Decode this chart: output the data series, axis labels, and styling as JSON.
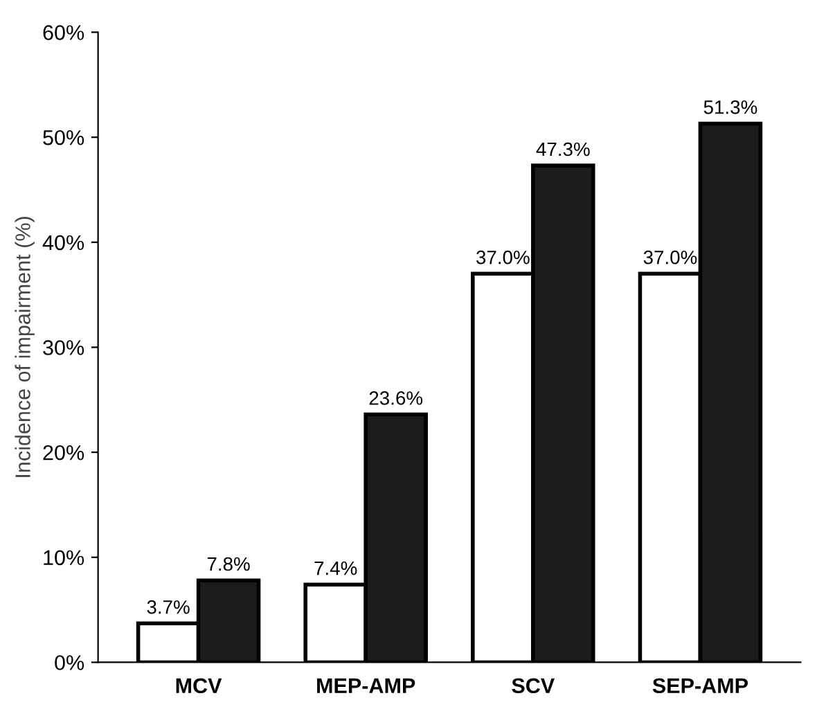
{
  "chart_data": {
    "type": "bar",
    "ylabel": "Incidence of impairment (%)",
    "categories": [
      "MCV",
      "MEP-AMP",
      "SCV",
      "SEP-AMP"
    ],
    "series": [
      {
        "color": "#ffffff",
        "values": [
          3.7,
          7.4,
          37.0,
          37.0
        ],
        "value_labels": [
          "3.7%",
          "7.4%",
          "37.0%",
          "37.0%"
        ]
      },
      {
        "color": "#1c1c1c",
        "values": [
          7.8,
          23.6,
          47.3,
          51.3
        ],
        "value_labels": [
          "7.8%",
          "23.6%",
          "47.3%",
          "51.3%"
        ]
      }
    ],
    "ylim": [
      0,
      60
    ],
    "yticks": [
      {
        "value": 0,
        "label": "0%"
      },
      {
        "value": 10,
        "label": "10%"
      },
      {
        "value": 20,
        "label": "20%"
      },
      {
        "value": 30,
        "label": "30%"
      },
      {
        "value": 40,
        "label": "40%"
      },
      {
        "value": 50,
        "label": "50%"
      },
      {
        "value": 60,
        "label": "60%"
      }
    ],
    "grid": false,
    "legend": false
  }
}
